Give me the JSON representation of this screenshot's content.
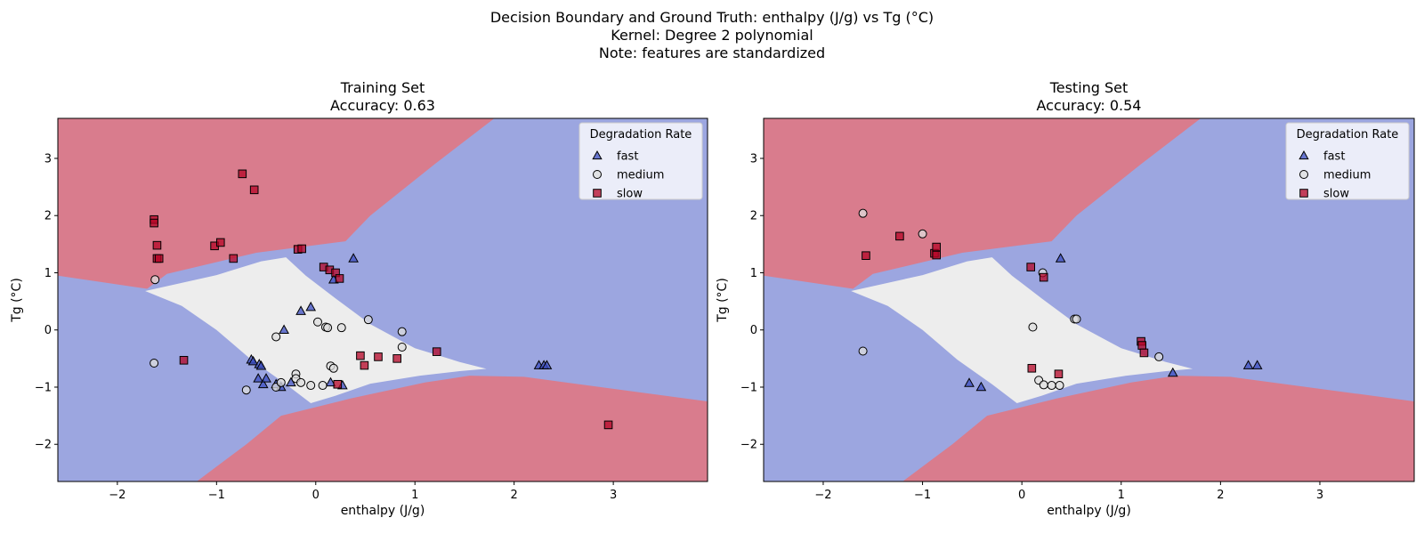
{
  "figure": {
    "title_lines": [
      "Decision Boundary and Ground Truth: enthalpy (J/g) vs Tg (°C)",
      "Kernel: Degree 2 polynomial",
      "Note: features are standardized"
    ]
  },
  "colors": {
    "fast": "#3b4cc0",
    "medium": "#dddddd",
    "slow": "#b40426",
    "region_fast": "#9ca6e0",
    "region_medium": "#ededed",
    "region_slow": "#d97c8d"
  },
  "chart_data": [
    {
      "type": "scatter",
      "title": "Training Set",
      "subtitle": "Accuracy: 0.63",
      "xlabel": "enthalpy (J/g)",
      "ylabel": "Tg (°C)",
      "xlim": [
        -2.6,
        3.95
      ],
      "ylim": [
        -2.65,
        3.7
      ],
      "xticks": [
        -2,
        -1,
        0,
        1,
        2,
        3
      ],
      "yticks": [
        -2,
        -1,
        0,
        1,
        2,
        3
      ],
      "xtick_labels": [
        "−2",
        "−1",
        "0",
        "1",
        "2",
        "3"
      ],
      "ytick_labels": [
        "−2",
        "−1",
        "0",
        "1",
        "2",
        "3"
      ],
      "legend": {
        "title": "Degradation Rate",
        "position": "top-right",
        "entries": [
          "fast",
          "medium",
          "slow"
        ]
      },
      "series": [
        {
          "name": "fast",
          "marker": "triangle",
          "x": [
            -0.65,
            -0.63,
            -0.57,
            -0.55,
            -0.58,
            -0.53,
            -0.5,
            -0.4,
            -0.35,
            -0.32,
            -0.15,
            -0.05,
            0.18,
            0.38,
            0.15,
            0.27,
            2.25,
            2.3,
            2.33,
            -0.25
          ],
          "y": [
            -0.52,
            -0.55,
            -0.6,
            -0.63,
            -0.85,
            -0.95,
            -0.85,
            -0.95,
            -1.0,
            0.0,
            0.33,
            0.4,
            0.88,
            1.25,
            -0.92,
            -0.97,
            -0.62,
            -0.62,
            -0.62,
            -0.92
          ]
        },
        {
          "name": "medium",
          "marker": "circle",
          "x": [
            -1.62,
            -1.63,
            -0.7,
            -0.4,
            -0.4,
            -0.35,
            -0.2,
            -0.2,
            -0.15,
            -0.05,
            0.02,
            0.07,
            0.1,
            0.12,
            0.15,
            0.18,
            0.26,
            0.53,
            0.87,
            0.87
          ],
          "y": [
            0.88,
            -0.58,
            -1.05,
            -0.12,
            -1.0,
            -0.92,
            -0.77,
            -0.85,
            -0.92,
            -0.97,
            0.14,
            -0.97,
            0.05,
            0.04,
            -0.63,
            -0.67,
            0.04,
            0.18,
            -0.03,
            -0.3
          ]
        },
        {
          "name": "slow",
          "marker": "square",
          "x": [
            -1.63,
            -1.63,
            -1.6,
            -1.6,
            -1.58,
            -1.33,
            -1.02,
            -0.96,
            -0.83,
            -0.74,
            -0.62,
            -0.18,
            -0.14,
            0.08,
            0.14,
            0.2,
            0.24,
            0.22,
            0.45,
            0.49,
            0.63,
            0.82,
            1.22,
            2.95
          ],
          "y": [
            1.93,
            1.87,
            1.48,
            1.25,
            1.25,
            -0.53,
            1.47,
            1.53,
            1.25,
            2.73,
            2.45,
            1.41,
            1.42,
            1.1,
            1.05,
            1.0,
            0.9,
            -0.95,
            -0.45,
            -0.62,
            -0.47,
            -0.5,
            -0.38,
            -1.66
          ]
        }
      ]
    },
    {
      "type": "scatter",
      "title": "Testing Set",
      "subtitle": "Accuracy: 0.54",
      "xlabel": "enthalpy (J/g)",
      "ylabel": "Tg (°C)",
      "xlim": [
        -2.6,
        3.95
      ],
      "ylim": [
        -2.65,
        3.7
      ],
      "xticks": [
        -2,
        -1,
        0,
        1,
        2,
        3
      ],
      "yticks": [
        -2,
        -1,
        0,
        1,
        2,
        3
      ],
      "xtick_labels": [
        "−2",
        "−1",
        "0",
        "1",
        "2",
        "3"
      ],
      "ytick_labels": [
        "−2",
        "−1",
        "0",
        "1",
        "2",
        "3"
      ],
      "legend": {
        "title": "Degradation Rate",
        "position": "top-right",
        "entries": [
          "fast",
          "medium",
          "slow"
        ]
      },
      "series": [
        {
          "name": "fast",
          "marker": "triangle",
          "x": [
            -0.53,
            -0.41,
            0.39,
            1.52,
            2.28,
            2.37
          ],
          "y": [
            -0.93,
            -1.0,
            1.25,
            -0.75,
            -0.62,
            -0.62
          ]
        },
        {
          "name": "medium",
          "marker": "circle",
          "x": [
            -1.6,
            -1.6,
            -1.0,
            0.11,
            0.17,
            0.21,
            0.22,
            0.3,
            0.38,
            0.53,
            0.55,
            1.38
          ],
          "y": [
            2.04,
            -0.37,
            1.68,
            0.05,
            -0.88,
            1.0,
            -0.96,
            -0.97,
            -0.97,
            0.19,
            0.19,
            -0.47
          ]
        },
        {
          "name": "slow",
          "marker": "square",
          "x": [
            -1.57,
            -1.23,
            -0.88,
            -0.86,
            -0.86,
            0.09,
            0.1,
            0.22,
            0.37,
            1.2,
            1.21,
            1.23
          ],
          "y": [
            1.3,
            1.64,
            1.34,
            1.31,
            1.45,
            1.1,
            -0.67,
            0.92,
            -0.77,
            -0.2,
            -0.27,
            -0.4
          ]
        }
      ]
    }
  ]
}
